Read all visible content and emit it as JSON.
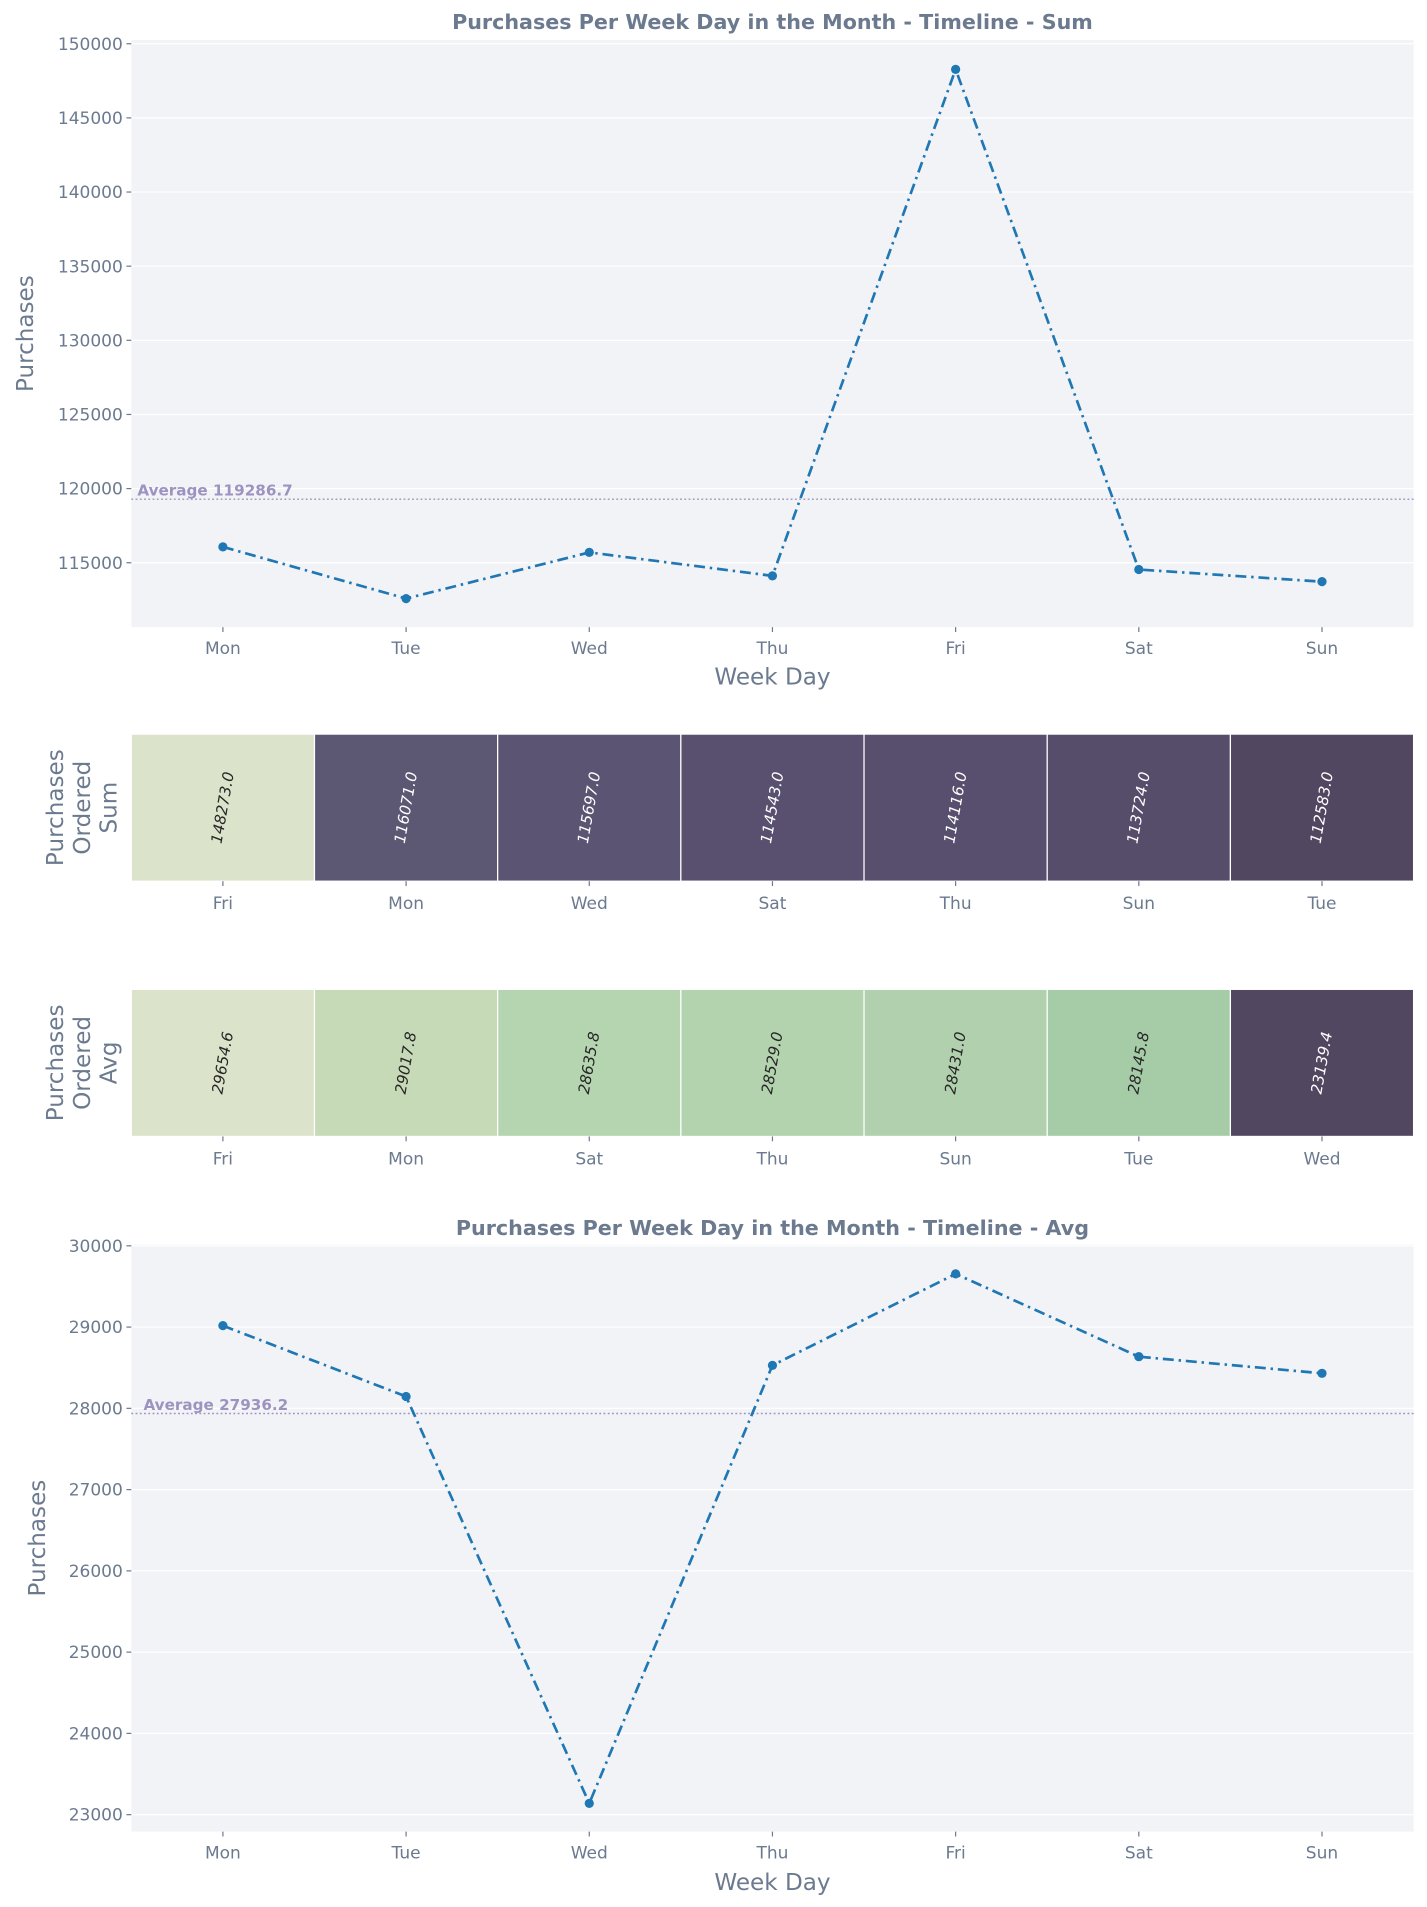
{
  "chart_data": [
    {
      "type": "line",
      "title": "Purchases Per Week Day in the Month - Timeline - Sum",
      "xlabel": "Week Day",
      "ylabel": "Purchases",
      "categories": [
        "Mon",
        "Tue",
        "Wed",
        "Thu",
        "Fri",
        "Sat",
        "Sun"
      ],
      "values": [
        116071,
        112583,
        115697,
        114116,
        148273,
        114543,
        113724
      ],
      "ylim": [
        110656,
        150246
      ],
      "yticks": [
        115000,
        120000,
        125000,
        130000,
        135000,
        140000,
        145000,
        150000
      ],
      "average": 119286.7,
      "average_label": "Average 119286.7",
      "grid": true,
      "color": "#1f77b4"
    },
    {
      "type": "heatmap",
      "ylabel_lines": [
        "Purchases",
        "Ordered",
        "Sum"
      ],
      "categories": [
        "Fri",
        "Mon",
        "Wed",
        "Sat",
        "Thu",
        "Sun",
        "Tue"
      ],
      "values": [
        148273.0,
        116071.0,
        115697.0,
        114543.0,
        114116.0,
        113724.0,
        112583.0
      ],
      "labels": [
        "148273.0",
        "116071.0",
        "115697.0",
        "114543.0",
        "114116.0",
        "113724.0",
        "112583.0"
      ],
      "colors": [
        "#dce3cb",
        "#5c5874",
        "#5b5573",
        "#58506e",
        "#574f6d",
        "#564d6b",
        "#524761"
      ]
    },
    {
      "type": "heatmap",
      "ylabel_lines": [
        "Purchases",
        "Ordered",
        "Avg"
      ],
      "categories": [
        "Fri",
        "Mon",
        "Sat",
        "Thu",
        "Sun",
        "Tue",
        "Wed"
      ],
      "values": [
        29654.6,
        29017.8,
        28635.8,
        28529.0,
        28431.0,
        28145.8,
        23139.4
      ],
      "labels": [
        "29654.6",
        "29017.8",
        "28635.8",
        "28529.0",
        "28431.0",
        "28145.8",
        "23139.4"
      ],
      "colors": [
        "#dce3cb",
        "#c6dab8",
        "#b5d4b0",
        "#b3d2ae",
        "#b1d0ad",
        "#a5cba7",
        "#524761"
      ]
    },
    {
      "type": "line",
      "title": "Purchases Per Week Day in the Month - Timeline - Avg",
      "xlabel": "Week Day",
      "ylabel": "Purchases",
      "categories": [
        "Mon",
        "Tue",
        "Wed",
        "Thu",
        "Fri",
        "Sat",
        "Sun"
      ],
      "values": [
        29017.8,
        28145.8,
        23139.4,
        28529.0,
        29654.6,
        28635.8,
        28431.0
      ],
      "ylim": [
        22791,
        30015
      ],
      "yticks": [
        23000,
        24000,
        25000,
        26000,
        27000,
        28000,
        29000,
        30000
      ],
      "average": 27936.2,
      "average_label": "Average 27936.2",
      "grid": true,
      "color": "#1f77b4"
    }
  ]
}
